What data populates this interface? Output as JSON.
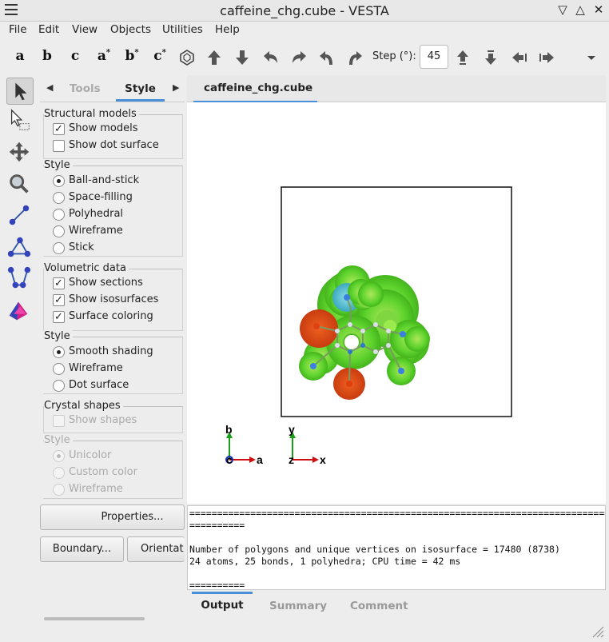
{
  "window": {
    "title": "caffeine_chg.cube - VESTA",
    "controls": [
      "▽",
      "△",
      "✕"
    ]
  },
  "menu": [
    "File",
    "Edit",
    "View",
    "Objects",
    "Utilities",
    "Help"
  ],
  "toolbar": {
    "axis_buttons": [
      {
        "base": "a",
        "sup": ""
      },
      {
        "base": "b",
        "sup": ""
      },
      {
        "base": "c",
        "sup": ""
      },
      {
        "base": "a",
        "sup": "*"
      },
      {
        "base": "b",
        "sup": "*"
      },
      {
        "base": "c",
        "sup": "*"
      }
    ],
    "step_label": "Step (°):",
    "step_value": "45"
  },
  "side_tools": [
    "select-arrow-icon",
    "select-box-icon",
    "translate-icon",
    "magnify-icon",
    "distance-icon",
    "angle-icon",
    "dihedral-icon",
    "lattice-plane-icon"
  ],
  "panel": {
    "tabs": [
      "Tools",
      "Style"
    ],
    "active_tab": "Style",
    "structural_models": {
      "title": "Structural models",
      "show_models": "Show models",
      "show_dot_surface": "Show dot surface"
    },
    "style1": {
      "title": "Style",
      "options": [
        "Ball-and-stick",
        "Space-filling",
        "Polyhedral",
        "Wireframe",
        "Stick"
      ],
      "selected": "Ball-and-stick"
    },
    "volumetric": {
      "title": "Volumetric data",
      "show_sections": "Show sections",
      "show_isosurfaces": "Show isosurfaces",
      "surface_coloring": "Surface coloring"
    },
    "style2": {
      "title": "Style",
      "options": [
        "Smooth shading",
        "Wireframe",
        "Dot surface"
      ],
      "selected": "Smooth shading"
    },
    "crystal": {
      "title": "Crystal shapes",
      "show_shapes": "Show shapes"
    },
    "style3": {
      "title": "Style",
      "options": [
        "Unicolor",
        "Custom color",
        "Wireframe"
      ],
      "selected": "Unicolor"
    },
    "properties": "Properties...",
    "boundary": "Boundary...",
    "orientation": "Orientat"
  },
  "doc_tab": "caffeine_chg.cube",
  "axes": {
    "b": "b",
    "a": "a",
    "c": "c",
    "y": "y",
    "x": "x",
    "z": "z"
  },
  "output": {
    "rule1": "=====================================================================================",
    "rule2": "==========",
    "line1": "Number of polygons and unique vertices on isosurface = 17480 (8738)",
    "line2": "24 atoms, 25 bonds, 1 polyhedra; CPU time = 42 ms",
    "rule3": "=========="
  },
  "bottom_tabs": [
    "Output",
    "Summary",
    "Comment"
  ]
}
